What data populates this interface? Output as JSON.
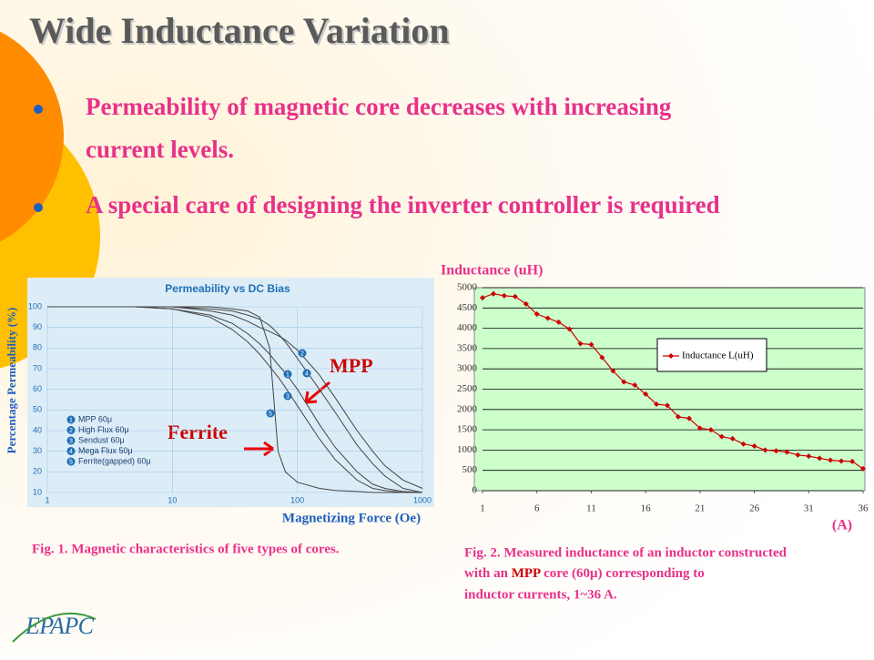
{
  "title": "Wide Inductance Variation",
  "bullets": [
    [
      "Permeability of magnetic core decreases with increasing",
      "current levels."
    ],
    [
      "A special care of designing the inverter controller is required"
    ]
  ],
  "fig1_caption": "Fig. 1.  Magnetic characteristics of five types of cores.",
  "fig2_caption": {
    "line1": "Fig. 2.  Measured inductance of an inductor constructed",
    "line2a": "with an",
    "line2b": "MPP",
    "line2c": "core (60μ) corresponding to",
    "line3": "inductor currents, 1~36 A."
  },
  "logo": "EPAPC",
  "chart_data": [
    {
      "type": "line",
      "title": "Permeability vs DC Bias",
      "xlabel": "Magnetizing Force (Oe)",
      "ylabel": "Percentage Permeability (%)",
      "xscale": "log",
      "xlim": [
        1,
        1000
      ],
      "ylim": [
        10,
        100
      ],
      "xticks": [
        1,
        10,
        100,
        1000
      ],
      "yticks": [
        10,
        20,
        30,
        40,
        50,
        60,
        70,
        80,
        90,
        100
      ],
      "grid": true,
      "annotations": [
        "MPP",
        "Ferrite"
      ],
      "x": [
        1,
        5,
        10,
        20,
        30,
        40,
        50,
        60,
        70,
        80,
        100,
        150,
        200,
        300,
        400,
        500,
        700,
        1000
      ],
      "series": [
        {
          "name": "MPP 60μ",
          "label": "1",
          "color": "#444444",
          "values": [
            100,
            100,
            99,
            96,
            92,
            87,
            82,
            77,
            72,
            68,
            60,
            43,
            32,
            20,
            14,
            12,
            10.5,
            10
          ]
        },
        {
          "name": "High Flux 60μ",
          "label": "2",
          "color": "#444444",
          "values": [
            100,
            100,
            100,
            98,
            96,
            93,
            90,
            88,
            86,
            84,
            79,
            67,
            56,
            40,
            30,
            23,
            16,
            12
          ]
        },
        {
          "name": "Sendust 60μ",
          "label": "3",
          "color": "#444444",
          "values": [
            100,
            100,
            99,
            95,
            89,
            83,
            77,
            71,
            66,
            61,
            52,
            36,
            26,
            16,
            12,
            11,
            10,
            10
          ]
        },
        {
          "name": "Mega Flux 50μ",
          "label": "4",
          "color": "#444444",
          "values": [
            100,
            100,
            100,
            99,
            98,
            96,
            94,
            91,
            87,
            83,
            75,
            60,
            49,
            33,
            24,
            18,
            12,
            10
          ]
        },
        {
          "name": "Ferrite(gapped) 60μ",
          "label": "5",
          "color": "#444444",
          "values": [
            100,
            100,
            100,
            100,
            99,
            98,
            95,
            80,
            30,
            20,
            15,
            12,
            11,
            10.5,
            10,
            10,
            10,
            10
          ]
        }
      ]
    },
    {
      "type": "line",
      "ylabel": "Inductance  (uH)",
      "xlabel": "(A)",
      "xlim": [
        1,
        36
      ],
      "ylim": [
        0,
        5000
      ],
      "xticks": [
        1,
        6,
        11,
        16,
        21,
        26,
        31,
        36
      ],
      "yticks": [
        0,
        500,
        1000,
        1500,
        2000,
        2500,
        3000,
        3500,
        4000,
        4500,
        5000
      ],
      "grid": true,
      "x": [
        1,
        2,
        3,
        4,
        5,
        6,
        7,
        8,
        9,
        10,
        11,
        12,
        13,
        14,
        15,
        16,
        17,
        18,
        19,
        20,
        21,
        22,
        23,
        24,
        25,
        26,
        27,
        28,
        29,
        30,
        31,
        32,
        33,
        34,
        35,
        36
      ],
      "series": [
        {
          "name": "Inductance  L(uH)",
          "color": "#cc0000",
          "values": [
            4750,
            4850,
            4800,
            4780,
            4600,
            4350,
            4250,
            4150,
            3980,
            3620,
            3600,
            3280,
            2950,
            2680,
            2600,
            2380,
            2130,
            2100,
            1820,
            1780,
            1540,
            1500,
            1330,
            1280,
            1150,
            1100,
            1000,
            980,
            950,
            880,
            850,
            800,
            750,
            730,
            720,
            540
          ]
        }
      ]
    }
  ]
}
